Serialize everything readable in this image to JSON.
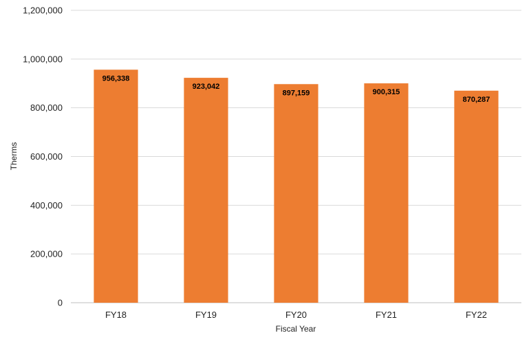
{
  "chart_data": {
    "type": "bar",
    "title": "",
    "xlabel": "Fiscal Year",
    "ylabel": "Therms",
    "categories": [
      "FY18",
      "FY19",
      "FY20",
      "FY21",
      "FY22"
    ],
    "values": [
      956338,
      923042,
      897159,
      900315,
      870287
    ],
    "data_labels": [
      "956,338",
      "923,042",
      "897,159",
      "900,315",
      "870,287"
    ],
    "ylim": [
      0,
      1200000
    ],
    "yticks": [
      0,
      200000,
      400000,
      600000,
      800000,
      1000000,
      1200000
    ],
    "ytick_labels": [
      "0",
      "200,000",
      "400,000",
      "600,000",
      "800,000",
      "1,000,000",
      "1,200,000"
    ],
    "grid": true,
    "legend": "none",
    "bar_color": "#ED7D31"
  }
}
